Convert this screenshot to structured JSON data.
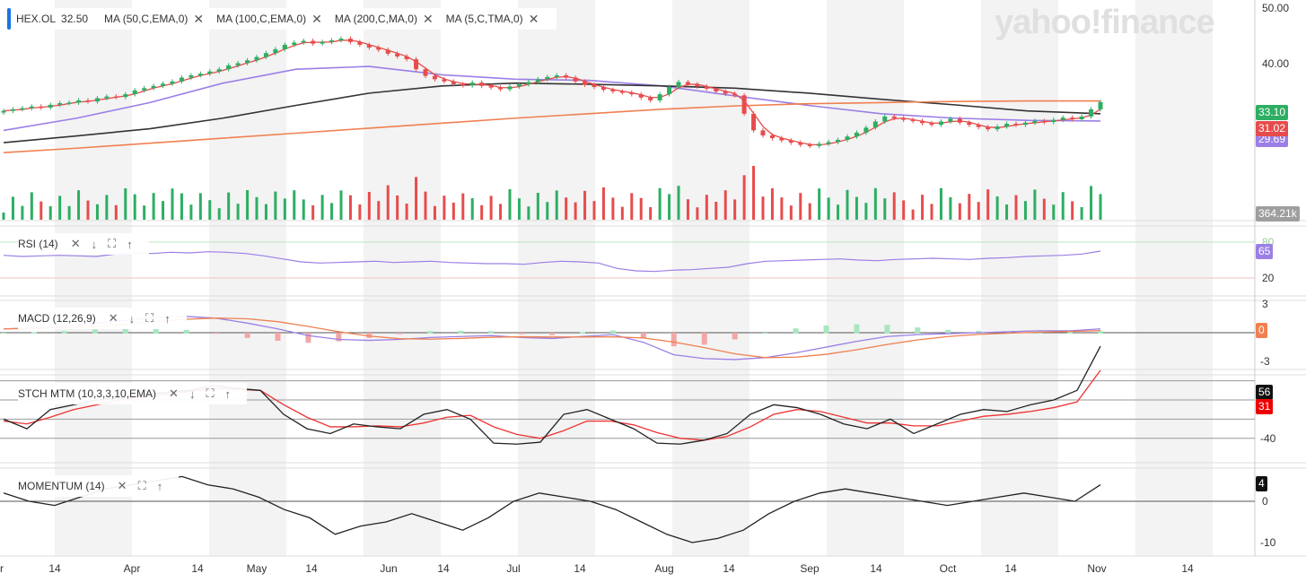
{
  "watermark": "yahoo!finance",
  "main_legend": {
    "ticker": "HEX.OL",
    "price": "32.50",
    "indicators": [
      "MA (50,C,EMA,0)",
      "MA (100,C,EMA,0)",
      "MA (200,C,MA,0)",
      "MA (5,C,TMA,0)"
    ]
  },
  "panels": {
    "rsi": {
      "label": "RSI (14)"
    },
    "macd": {
      "label": "MACD (12,26,9)"
    },
    "stoch": {
      "label": "STCH MTM (10,3,3,10,EMA)"
    },
    "momentum": {
      "label": "MOMENTUM (14)"
    }
  },
  "price_labels": {
    "last": "33.10",
    "ma_red": "31.02",
    "ma_purple": "29.69",
    "volume": "364.21k"
  },
  "indicator_labels": {
    "rsi": "65",
    "macd": "0",
    "stoch_k": "56",
    "stoch_d": "31",
    "momentum": "4"
  },
  "axis": {
    "price": [
      "50.00",
      "40.00"
    ],
    "rsi": [
      "80",
      "20"
    ],
    "macd": [
      "3",
      "-3"
    ],
    "stoch": [
      "-40"
    ],
    "momentum": [
      "0",
      "-10"
    ],
    "x": [
      "r",
      "14",
      "Apr",
      "14",
      "May",
      "14",
      "Jun",
      "14",
      "Jul",
      "14",
      "Aug",
      "14",
      "Sep",
      "14",
      "Oct",
      "14",
      "Nov",
      "14"
    ]
  },
  "colors": {
    "up": "#2dae63",
    "down": "#e74c4c",
    "ma50": "#9b7fe6",
    "ma100": "#333333",
    "ma200": "#f08050",
    "tma": "#e74c4c",
    "accent": "#1a73e8"
  },
  "chart_data": {
    "type": "candlestick",
    "x_start": "2021-03-17",
    "x_end": "2021-11-01",
    "ohlc_close": [
      31.5,
      31.8,
      32.0,
      32.3,
      32.1,
      32.6,
      32.9,
      33.0,
      33.4,
      33.2,
      33.8,
      34.1,
      34.0,
      34.5,
      35.2,
      35.6,
      36.0,
      36.4,
      36.8,
      37.5,
      37.9,
      38.2,
      38.6,
      39.0,
      39.7,
      40.1,
      40.6,
      41.2,
      41.9,
      42.6,
      43.4,
      43.8,
      44.1,
      43.6,
      43.9,
      44.2,
      44.5,
      43.9,
      43.4,
      42.9,
      42.5,
      41.8,
      41.3,
      40.8,
      39.0,
      37.8,
      37.2,
      36.8,
      36.3,
      36.1,
      36.6,
      36.0,
      35.7,
      35.4,
      35.9,
      36.3,
      36.7,
      37.2,
      37.6,
      37.9,
      37.5,
      36.8,
      36.2,
      35.8,
      35.3,
      35.0,
      34.8,
      34.5,
      33.9,
      33.4,
      34.5,
      35.8,
      36.7,
      36.3,
      35.9,
      35.5,
      35.0,
      34.6,
      34.3,
      31.0,
      28.0,
      27.1,
      26.6,
      26.2,
      25.8,
      25.4,
      25.2,
      25.6,
      25.9,
      26.3,
      26.9,
      27.6,
      28.5,
      29.6,
      30.5,
      30.2,
      29.9,
      29.7,
      29.3,
      29.0,
      29.6,
      30.1,
      29.4,
      29.0,
      28.6,
      28.2,
      28.7,
      29.2,
      29.0,
      29.4,
      29.7,
      29.5,
      29.9,
      30.3,
      30.0,
      30.5,
      31.8,
      33.1
    ],
    "series": [
      {
        "name": "MA (50,C,EMA,0)",
        "values": [
          28.0,
          30.2,
          33.0,
          36.5,
          39.0,
          39.5,
          38.0,
          37.2,
          37.0,
          36.0,
          34.2,
          32.5,
          31.0,
          30.2,
          29.8,
          29.69
        ]
      },
      {
        "name": "MA (100,C,EMA,0)",
        "values": [
          25.8,
          27.0,
          28.3,
          30.2,
          32.5,
          34.7,
          36.0,
          36.5,
          36.3,
          36.0,
          35.6,
          34.7,
          33.6,
          32.6,
          31.5,
          31.0
        ]
      },
      {
        "name": "MA (200,C,MA,0)",
        "values": [
          24.0,
          24.8,
          25.7,
          26.6,
          27.5,
          28.4,
          29.3,
          30.2,
          31.0,
          31.8,
          32.4,
          32.8,
          33.0,
          33.2,
          33.3,
          33.3
        ]
      }
    ],
    "rsi": [
      58,
      56,
      57,
      58,
      57,
      56,
      60,
      62,
      61,
      63,
      62,
      64,
      63,
      61,
      57,
      52,
      47,
      45,
      46,
      47,
      48,
      46,
      47,
      48,
      46,
      45,
      44,
      44,
      43,
      46,
      48,
      47,
      45,
      36,
      32,
      31,
      33,
      34,
      36,
      38,
      44,
      48,
      49,
      50,
      51,
      52,
      50,
      49,
      51,
      52,
      53,
      52,
      51,
      53,
      54,
      56,
      57,
      58,
      60,
      65
    ],
    "macd": [
      0.4,
      0.5,
      0.7,
      1.0,
      1.3,
      1.6,
      1.7,
      1.5,
      1.0,
      0.4,
      -0.3,
      -0.7,
      -0.8,
      -0.7,
      -0.5,
      -0.4,
      -0.3,
      -0.5,
      -0.6,
      -0.4,
      -0.2,
      -1.0,
      -2.3,
      -2.7,
      -2.8,
      -2.6,
      -2.1,
      -1.5,
      -0.9,
      -0.4,
      -0.2,
      -0.1,
      0.0,
      0.1,
      0.2,
      0.2,
      0.4
    ],
    "stoch_k": [
      -20,
      -30,
      -10,
      -5,
      0,
      2,
      5,
      8,
      10,
      15,
      12,
      10,
      -15,
      -30,
      -35,
      -25,
      -28,
      -30,
      -15,
      -10,
      -20,
      -45,
      -46,
      -44,
      -15,
      -10,
      -20,
      -30,
      -45,
      -46,
      -42,
      -35,
      -15,
      -5,
      -8,
      -15,
      -25,
      -30,
      -20,
      -35,
      -25,
      -15,
      -10,
      -12,
      -5,
      0,
      10,
      56
    ],
    "stoch_d": [
      -22,
      -25,
      -18,
      -10,
      -5,
      0,
      3,
      6,
      9,
      12,
      11,
      10,
      -5,
      -18,
      -28,
      -28,
      -27,
      -28,
      -24,
      -18,
      -16,
      -28,
      -36,
      -40,
      -32,
      -22,
      -22,
      -26,
      -34,
      -40,
      -42,
      -38,
      -28,
      -15,
      -10,
      -12,
      -18,
      -24,
      -24,
      -27,
      -27,
      -22,
      -17,
      -15,
      -12,
      -8,
      -2,
      31
    ],
    "momentum": [
      2,
      0,
      -1,
      1,
      3,
      4,
      5,
      6,
      4,
      3,
      1,
      -2,
      -4,
      -8,
      -6,
      -5,
      -3,
      -5,
      -7,
      -4,
      0,
      2,
      1,
      0,
      -2,
      -5,
      -8,
      -10,
      -9,
      -7,
      -3,
      0,
      2,
      3,
      2,
      1,
      0,
      -1,
      0,
      1,
      2,
      1,
      0,
      4
    ]
  }
}
